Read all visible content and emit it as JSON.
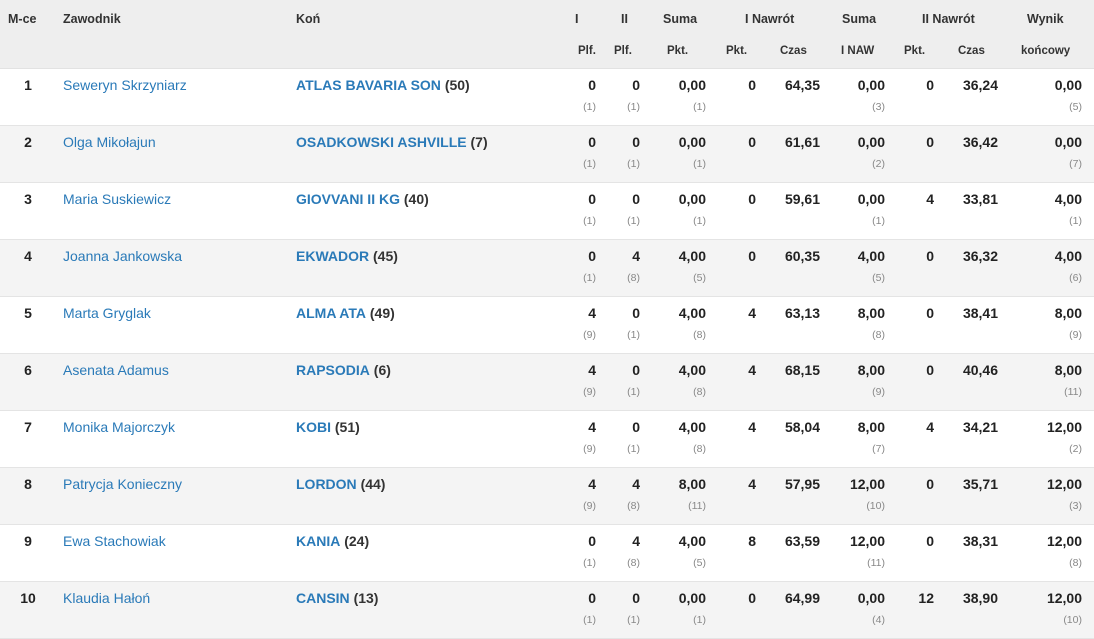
{
  "header": {
    "row1": {
      "place": "M-ce",
      "rider": "Zawodnik",
      "horse": "Koń",
      "r1": "I",
      "r2": "II",
      "sum": "Suma",
      "jo1": "I Nawrót",
      "sum2": "Suma",
      "jo2": "II Nawrót",
      "result": "Wynik"
    },
    "row2": {
      "r1": "Plf.",
      "r2": "Plf.",
      "sum": "Pkt.",
      "jo1_pts": "Pkt.",
      "jo1_time": "Czas",
      "sum2": "I NAW",
      "jo2_pts": "Pkt.",
      "jo2_time": "Czas",
      "result": "końcowy"
    }
  },
  "rows": [
    {
      "place": "1",
      "rider": "Seweryn Skrzyniarz",
      "horse": "ATLAS BAVARIA SON",
      "horse_no": "(50)",
      "r1": "0",
      "r1_rank": "(1)",
      "r2": "0",
      "r2_rank": "(1)",
      "sum": "0,00",
      "sum_rank": "(1)",
      "jo1_pts": "0",
      "jo1_time": "64,35",
      "sum2": "0,00",
      "sum2_rank": "(3)",
      "jo2_pts": "0",
      "jo2_time": "36,24",
      "result": "0,00",
      "result_rank": "(5)"
    },
    {
      "place": "2",
      "rider": "Olga Mikołajun",
      "horse": "OSADKOWSKI ASHVILLE",
      "horse_no": "(7)",
      "r1": "0",
      "r1_rank": "(1)",
      "r2": "0",
      "r2_rank": "(1)",
      "sum": "0,00",
      "sum_rank": "(1)",
      "jo1_pts": "0",
      "jo1_time": "61,61",
      "sum2": "0,00",
      "sum2_rank": "(2)",
      "jo2_pts": "0",
      "jo2_time": "36,42",
      "result": "0,00",
      "result_rank": "(7)"
    },
    {
      "place": "3",
      "rider": "Maria Suskiewicz",
      "horse": "GIOVVANI II KG",
      "horse_no": "(40)",
      "r1": "0",
      "r1_rank": "(1)",
      "r2": "0",
      "r2_rank": "(1)",
      "sum": "0,00",
      "sum_rank": "(1)",
      "jo1_pts": "0",
      "jo1_time": "59,61",
      "sum2": "0,00",
      "sum2_rank": "(1)",
      "jo2_pts": "4",
      "jo2_time": "33,81",
      "result": "4,00",
      "result_rank": "(1)"
    },
    {
      "place": "4",
      "rider": "Joanna Jankowska",
      "horse": "EKWADOR",
      "horse_no": "(45)",
      "r1": "0",
      "r1_rank": "(1)",
      "r2": "4",
      "r2_rank": "(8)",
      "sum": "4,00",
      "sum_rank": "(5)",
      "jo1_pts": "0",
      "jo1_time": "60,35",
      "sum2": "4,00",
      "sum2_rank": "(5)",
      "jo2_pts": "0",
      "jo2_time": "36,32",
      "result": "4,00",
      "result_rank": "(6)"
    },
    {
      "place": "5",
      "rider": "Marta Gryglak",
      "horse": "ALMA ATA",
      "horse_no": "(49)",
      "r1": "4",
      "r1_rank": "(9)",
      "r2": "0",
      "r2_rank": "(1)",
      "sum": "4,00",
      "sum_rank": "(8)",
      "jo1_pts": "4",
      "jo1_time": "63,13",
      "sum2": "8,00",
      "sum2_rank": "(8)",
      "jo2_pts": "0",
      "jo2_time": "38,41",
      "result": "8,00",
      "result_rank": "(9)"
    },
    {
      "place": "6",
      "rider": "Asenata Adamus",
      "horse": "RAPSODIA",
      "horse_no": "(6)",
      "r1": "4",
      "r1_rank": "(9)",
      "r2": "0",
      "r2_rank": "(1)",
      "sum": "4,00",
      "sum_rank": "(8)",
      "jo1_pts": "4",
      "jo1_time": "68,15",
      "sum2": "8,00",
      "sum2_rank": "(9)",
      "jo2_pts": "0",
      "jo2_time": "40,46",
      "result": "8,00",
      "result_rank": "(11)"
    },
    {
      "place": "7",
      "rider": "Monika Majorczyk",
      "horse": "KOBI",
      "horse_no": "(51)",
      "r1": "4",
      "r1_rank": "(9)",
      "r2": "0",
      "r2_rank": "(1)",
      "sum": "4,00",
      "sum_rank": "(8)",
      "jo1_pts": "4",
      "jo1_time": "58,04",
      "sum2": "8,00",
      "sum2_rank": "(7)",
      "jo2_pts": "4",
      "jo2_time": "34,21",
      "result": "12,00",
      "result_rank": "(2)"
    },
    {
      "place": "8",
      "rider": "Patrycja Konieczny",
      "horse": "LORDON",
      "horse_no": "(44)",
      "r1": "4",
      "r1_rank": "(9)",
      "r2": "4",
      "r2_rank": "(8)",
      "sum": "8,00",
      "sum_rank": "(11)",
      "jo1_pts": "4",
      "jo1_time": "57,95",
      "sum2": "12,00",
      "sum2_rank": "(10)",
      "jo2_pts": "0",
      "jo2_time": "35,71",
      "result": "12,00",
      "result_rank": "(3)"
    },
    {
      "place": "9",
      "rider": "Ewa Stachowiak",
      "horse": "KANIA",
      "horse_no": "(24)",
      "r1": "0",
      "r1_rank": "(1)",
      "r2": "4",
      "r2_rank": "(8)",
      "sum": "4,00",
      "sum_rank": "(5)",
      "jo1_pts": "8",
      "jo1_time": "63,59",
      "sum2": "12,00",
      "sum2_rank": "(11)",
      "jo2_pts": "0",
      "jo2_time": "38,31",
      "result": "12,00",
      "result_rank": "(8)"
    },
    {
      "place": "10",
      "rider": "Klaudia Hałoń",
      "horse": "CANSIN",
      "horse_no": "(13)",
      "r1": "0",
      "r1_rank": "(1)",
      "r2": "0",
      "r2_rank": "(1)",
      "sum": "0,00",
      "sum_rank": "(1)",
      "jo1_pts": "0",
      "jo1_time": "64,99",
      "sum2": "0,00",
      "sum2_rank": "(4)",
      "jo2_pts": "12",
      "jo2_time": "38,90",
      "result": "12,00",
      "result_rank": "(10)"
    }
  ]
}
